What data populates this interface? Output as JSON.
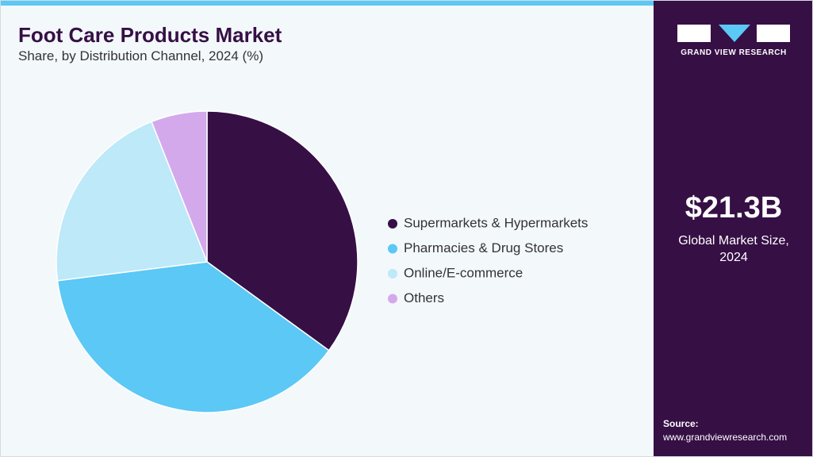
{
  "chart_data": {
    "type": "pie",
    "title": "Foot Care Products Market",
    "subtitle": "Share, by Distribution Channel, 2024 (%)",
    "categories": [
      "Supermarkets & Hypermarkets",
      "Pharmacies & Drug Stores",
      "Online/E-commerce",
      "Others"
    ],
    "values": [
      35,
      38,
      21,
      6
    ],
    "colors": [
      "#360f45",
      "#5bc8f5",
      "#bde9f9",
      "#d4a9ec"
    ],
    "legend": "right"
  },
  "sidebar": {
    "brand": "GRAND VIEW RESEARCH",
    "market_size": "$21.3B",
    "market_size_label": "Global Market Size, 2024",
    "source_label": "Source:",
    "source_url": "www.grandviewresearch.com"
  }
}
